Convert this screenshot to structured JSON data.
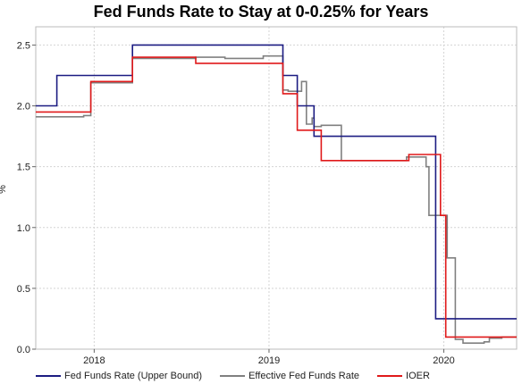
{
  "chart_data": {
    "type": "line",
    "title": "Fed Funds Rate to Stay at 0-0.25% for Years",
    "xlabel": "",
    "ylabel": "%",
    "ylim": [
      0,
      2.65
    ],
    "xlim": [
      "2017-09-01",
      "2020-06-01"
    ],
    "x_tick_labels": [
      "2018",
      "2019",
      "2020"
    ],
    "x_ticks": [
      "2018-01-01",
      "2019-01-01",
      "2020-01-01"
    ],
    "y_ticks": [
      0.0,
      0.5,
      1.0,
      1.5,
      2.0,
      2.5
    ],
    "y_tick_labels": [
      "0.0",
      "0.5",
      "1.0",
      "1.5",
      "2.0",
      "2.5"
    ],
    "grid": true,
    "legend_position": "bottom",
    "series": [
      {
        "name": "Fed Funds Rate (Upper Bound)",
        "color": "#1c1c82",
        "x": [
          "2017-09-01",
          "2017-10-15",
          "2017-10-15",
          "2018-03-22",
          "2018-03-22",
          "2019-01-30",
          "2019-01-30",
          "2019-03-01",
          "2019-03-01",
          "2019-04-05",
          "2019-04-05",
          "2019-06-15",
          "2019-06-15",
          "2019-12-15",
          "2019-12-15",
          "2020-06-01"
        ],
        "values": [
          2.0,
          2.0,
          2.25,
          2.25,
          2.5,
          2.5,
          2.25,
          2.25,
          2.0,
          2.0,
          1.75,
          1.75,
          1.75,
          1.75,
          0.25,
          0.25
        ]
      },
      {
        "name": "Effective Fed Funds Rate",
        "color": "#808080",
        "x": [
          "2017-09-01",
          "2017-12-10",
          "2017-12-10",
          "2017-12-25",
          "2017-12-25",
          "2018-03-22",
          "2018-03-22",
          "2018-08-01",
          "2018-08-01",
          "2018-10-01",
          "2018-10-01",
          "2018-12-20",
          "2018-12-20",
          "2019-01-30",
          "2019-01-30",
          "2019-02-10",
          "2019-02-10",
          "2019-03-10",
          "2019-03-10",
          "2019-03-20",
          "2019-03-20",
          "2019-04-01",
          "2019-04-01",
          "2019-04-05",
          "2019-04-05",
          "2019-04-20",
          "2019-04-20",
          "2019-06-01",
          "2019-06-01",
          "2019-10-15",
          "2019-10-15",
          "2019-11-25",
          "2019-11-25",
          "2019-12-01",
          "2019-12-01",
          "2020-01-08",
          "2020-01-08",
          "2020-01-25",
          "2020-01-25",
          "2020-02-10",
          "2020-02-10",
          "2020-03-25",
          "2020-03-25",
          "2020-04-05",
          "2020-04-05",
          "2020-05-01",
          "2020-05-01",
          "2020-06-01"
        ],
        "values": [
          1.91,
          1.91,
          1.92,
          1.92,
          2.19,
          2.19,
          2.39,
          2.39,
          2.4,
          2.4,
          2.39,
          2.39,
          2.41,
          2.41,
          2.13,
          2.13,
          2.12,
          2.12,
          2.2,
          2.2,
          1.85,
          1.85,
          1.9,
          1.9,
          1.83,
          1.83,
          1.84,
          1.84,
          1.55,
          1.55,
          1.58,
          1.58,
          1.5,
          1.5,
          1.1,
          1.1,
          0.75,
          0.75,
          0.08,
          0.08,
          0.05,
          0.05,
          0.06,
          0.06,
          0.09,
          0.09,
          0.1,
          0.1
        ]
      },
      {
        "name": "IOER",
        "color": "#e0191a",
        "x": [
          "2017-09-01",
          "2017-12-25",
          "2017-12-25",
          "2018-03-22",
          "2018-03-22",
          "2018-08-01",
          "2018-08-01",
          "2019-01-30",
          "2019-01-30",
          "2019-03-01",
          "2019-03-01",
          "2019-03-20",
          "2019-03-20",
          "2019-04-20",
          "2019-04-20",
          "2019-10-20",
          "2019-10-20",
          "2019-12-25",
          "2019-12-25",
          "2020-01-05",
          "2020-01-05",
          "2020-01-30",
          "2020-01-30",
          "2020-06-01"
        ],
        "values": [
          1.95,
          1.95,
          2.2,
          2.2,
          2.4,
          2.4,
          2.35,
          2.35,
          2.1,
          2.1,
          1.8,
          1.8,
          1.8,
          1.8,
          1.55,
          1.55,
          1.6,
          1.6,
          1.1,
          1.1,
          0.1,
          0.1,
          0.1,
          0.1
        ]
      }
    ]
  }
}
